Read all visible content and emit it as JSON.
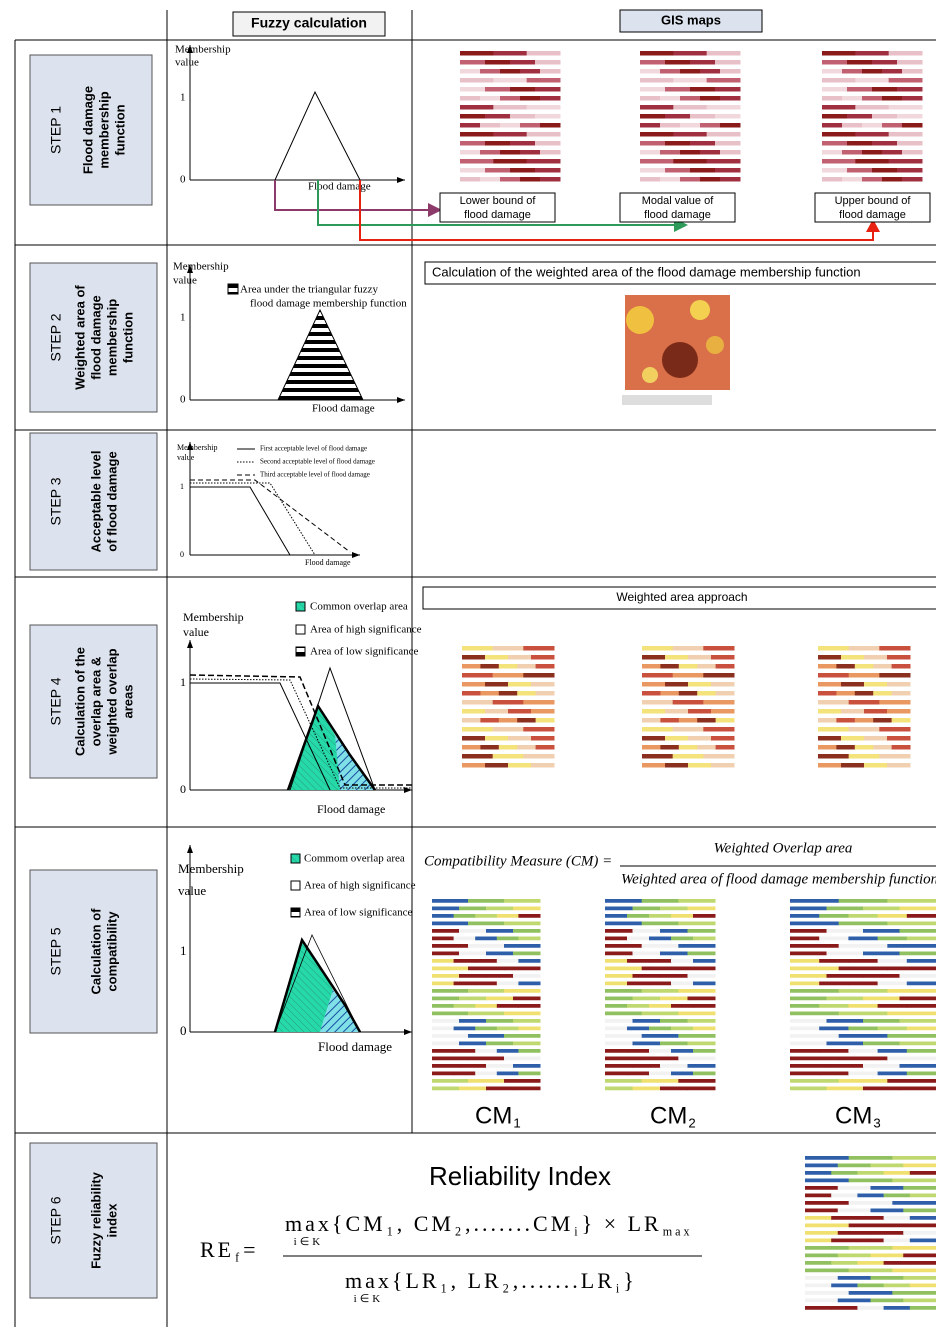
{
  "header": {
    "fuzzy_calculation": "Fuzzy calculation",
    "gis_maps": "GIS maps"
  },
  "steps": [
    {
      "label": "STEP 1",
      "title": [
        "Flood damage",
        "membership",
        "function"
      ],
      "chart": {
        "y_label": [
          "Membership",
          "value"
        ],
        "y_one": "1",
        "y_zero": "0",
        "x_label": "Flood damage"
      },
      "maps": [
        [
          "Lower bound of",
          "flood damage"
        ],
        [
          "Modal value of",
          "flood damage"
        ],
        [
          "Upper bound of",
          "flood damage"
        ]
      ]
    },
    {
      "label": "STEP 2",
      "title": [
        "Weighted area of",
        "flood damage",
        "membership",
        "function"
      ],
      "chart": {
        "y_label": [
          "Membership",
          "value"
        ],
        "y_one": "1",
        "y_zero": "0",
        "x_label": "Flood damage",
        "legend": [
          "Area under the triangular fuzzy",
          "flood damage membership function"
        ]
      },
      "banner": "Calculation of the weighted area of the flood damage membership function"
    },
    {
      "label": "STEP 3",
      "title": [
        "Acceptable level",
        "of flood damage"
      ],
      "chart": {
        "y_label": [
          "Membership",
          "value"
        ],
        "y_one": "1",
        "y_zero": "0",
        "x_label": "Flood damage",
        "legend": [
          "First acceptable level of flood damage",
          "Second acceptable level of flood damage",
          "Third acceptable level of flood damage"
        ]
      }
    },
    {
      "label": "STEP 4",
      "title": [
        "Calculation of the",
        "overlap area &",
        "weighted overlap",
        "areas"
      ],
      "chart": {
        "y_label": [
          "Membership",
          "value"
        ],
        "y_one": "1",
        "y_zero": "0",
        "x_label": "Flood damage",
        "legend": [
          "Common overlap area",
          "Area of high significance",
          "Area of low significance"
        ]
      },
      "banner": "Weighted area approach"
    },
    {
      "label": "STEP 5",
      "title": [
        "Calculation of",
        "compatibility"
      ],
      "chart": {
        "y_label": [
          "Membership",
          "value"
        ],
        "y_one": "1",
        "y_zero": "0",
        "x_label": "Flood damage",
        "legend": [
          "Commom overlap area",
          "Area of high significance",
          "Area of low significance"
        ]
      },
      "formula": {
        "left": "Compatibility Measure (CM) =",
        "numerator": "Weighted Overlap area",
        "denominator": "Weighted area of  flood damage membership function"
      },
      "cm_labels": [
        [
          {
            "text": "CM",
            "sub": "1"
          }
        ],
        [
          {
            "text": "CM",
            "sub": "2"
          }
        ],
        [
          {
            "text": "CM",
            "sub": "3"
          }
        ]
      ]
    },
    {
      "label": "STEP 6",
      "title": [
        "Fuzzy reliability",
        "index"
      ],
      "heading": "Reliability Index",
      "formula": {
        "left": [
          {
            "text": "RE",
            "sub": "f"
          },
          {
            "text": " ="
          }
        ],
        "numerator": [
          {
            "text": "max",
            "under": "i∈K"
          },
          {
            "text": " {CM",
            "sub": "1"
          },
          {
            "text": ", CM",
            "sub": "2"
          },
          {
            "text": ",.......CM",
            "sub": "i"
          },
          {
            "text": "} × LR",
            "sub": "max"
          }
        ],
        "denominator": [
          {
            "text": "max",
            "under": "i∈K"
          },
          {
            "text": " {LR",
            "sub": "1"
          },
          {
            "text": ", LR",
            "sub": "2"
          },
          {
            "text": ",.......LR",
            "sub": "i"
          },
          {
            "text": "}"
          }
        ]
      }
    }
  ]
}
